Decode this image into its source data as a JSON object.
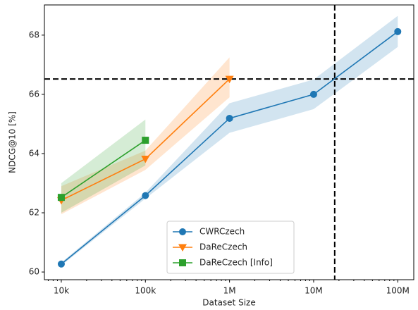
{
  "chart_data": {
    "type": "line",
    "x_scale": "log",
    "xlabel": "Dataset Size",
    "ylabel": "NDCG@10 [%]",
    "xlim": [
      6300,
      155000000
    ],
    "ylim": [
      59.74,
      69.02
    ],
    "xticks": [
      {
        "value": 10000,
        "label": "10k"
      },
      {
        "value": 100000,
        "label": "100k"
      },
      {
        "value": 1000000,
        "label": "1M"
      },
      {
        "value": 10000000,
        "label": "10M"
      },
      {
        "value": 100000000,
        "label": "100M"
      }
    ],
    "yticks": [
      60,
      62,
      64,
      66,
      68
    ],
    "hlines": [
      66.52
    ],
    "vlines": [
      17800000
    ],
    "legend": "lower center",
    "series": [
      {
        "name": "CWRCzech",
        "color": "#1f77b4",
        "marker": "circle",
        "x": [
          10000,
          100000,
          1000000,
          10000000,
          100000000
        ],
        "values": [
          60.27,
          62.58,
          65.19,
          66.0,
          68.12
        ],
        "lower": [
          60.22,
          62.48,
          64.7,
          65.5,
          67.6
        ],
        "upper": [
          60.32,
          62.68,
          65.7,
          66.5,
          68.65
        ]
      },
      {
        "name": "DaReCzech",
        "color": "#ff7f0e",
        "marker": "triangle-down",
        "x": [
          10000,
          100000,
          1000000
        ],
        "values": [
          62.42,
          63.82,
          66.52
        ],
        "lower": [
          61.95,
          63.45,
          65.9
        ],
        "upper": [
          62.9,
          64.1,
          67.25
        ]
      },
      {
        "name": "DaReCzech [Info]",
        "color": "#2ca02c",
        "marker": "square",
        "x": [
          10000,
          100000
        ],
        "values": [
          62.52,
          64.45
        ],
        "lower": [
          62.0,
          63.6
        ],
        "upper": [
          63.0,
          65.15
        ]
      }
    ]
  }
}
